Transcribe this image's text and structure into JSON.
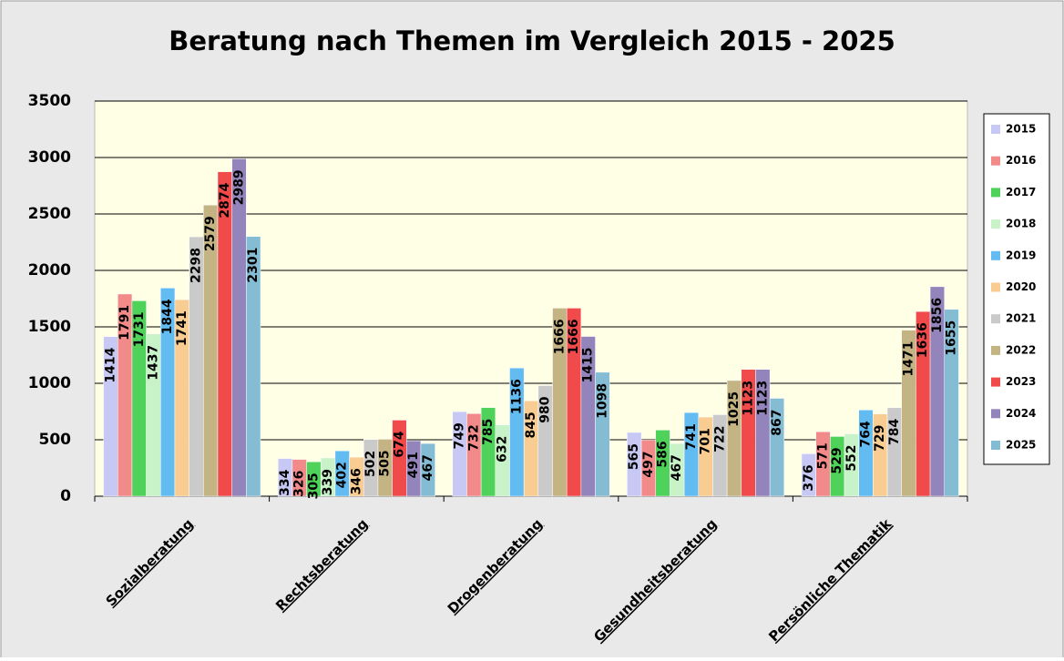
{
  "chart_data": {
    "type": "bar",
    "title": "Beratung nach Themen im Vergleich 2015 - 2025",
    "categories": [
      "Sozialberatung",
      "Rechtsberatung",
      "Drogenberatung",
      "Gesundheitsberatung",
      "Persönliche Thematik"
    ],
    "series": [
      {
        "name": "2015",
        "color": "#c8c8f4",
        "values": [
          1414,
          334,
          749,
          565,
          376
        ]
      },
      {
        "name": "2016",
        "color": "#f28a8a",
        "values": [
          1791,
          326,
          732,
          497,
          571
        ]
      },
      {
        "name": "2017",
        "color": "#4fd25a",
        "values": [
          1731,
          305,
          785,
          586,
          529
        ]
      },
      {
        "name": "2018",
        "color": "#c8f2c8",
        "values": [
          1437,
          339,
          632,
          467,
          552
        ]
      },
      {
        "name": "2019",
        "color": "#62bcf2",
        "values": [
          1844,
          402,
          1136,
          741,
          764
        ]
      },
      {
        "name": "2020",
        "color": "#f9cc92",
        "values": [
          1741,
          346,
          845,
          701,
          729
        ]
      },
      {
        "name": "2021",
        "color": "#cacaca",
        "values": [
          2298,
          502,
          980,
          722,
          784
        ]
      },
      {
        "name": "2022",
        "color": "#c4b484",
        "values": [
          2579,
          505,
          1666,
          1025,
          1471
        ]
      },
      {
        "name": "2023",
        "color": "#f04a4a",
        "values": [
          2874,
          674,
          1666,
          1123,
          1636
        ]
      },
      {
        "name": "2024",
        "color": "#9484bc",
        "values": [
          2989,
          491,
          1415,
          1123,
          1856
        ]
      },
      {
        "name": "2025",
        "color": "#84bcd4",
        "values": [
          2301,
          467,
          1098,
          867,
          1655
        ]
      }
    ],
    "ylim": [
      0,
      3500
    ],
    "yticks": [
      0,
      500,
      1000,
      1500,
      2000,
      2500,
      3000,
      3500
    ],
    "grid": true,
    "legend": "right"
  }
}
